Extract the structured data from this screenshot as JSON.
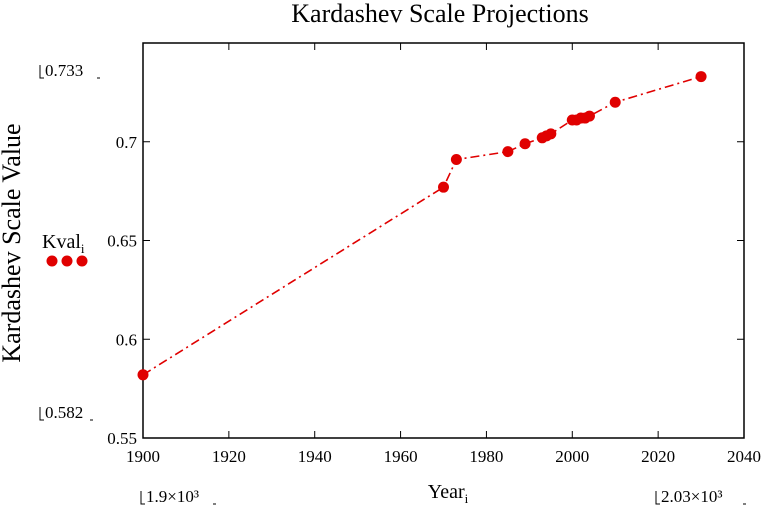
{
  "chart_data": {
    "type": "line",
    "title": "Kardashev Scale Projections",
    "xlabel": "Year",
    "xlabel_subscript": "i",
    "ylabel": "Kardashev Scale Value",
    "xlim": [
      1900,
      2040
    ],
    "ylim": [
      0.55,
      0.75
    ],
    "xticks": [
      1900,
      1920,
      1940,
      1960,
      1980,
      2000,
      2020,
      2040
    ],
    "yticks": [
      0.55,
      0.6,
      0.65,
      0.7
    ],
    "ytick_labels": [
      "0.55",
      "0.6",
      "0.65",
      "0.7"
    ],
    "grid": false,
    "series": [
      {
        "name": "Kval",
        "legend_subscript": "i",
        "color": "#e00000",
        "line_style": "dash-dot",
        "marker": "circle",
        "x": [
          1900,
          1970,
          1973,
          1985,
          1989,
          1993,
          1994,
          1995,
          2000,
          2001,
          2002,
          2003,
          2004,
          2010,
          2030
        ],
        "y": [
          0.582,
          0.677,
          0.691,
          0.695,
          0.699,
          0.702,
          0.703,
          0.704,
          0.711,
          0.711,
          0.712,
          0.712,
          0.713,
          0.72,
          0.733
        ]
      }
    ],
    "axis_limit_labels": {
      "y_max": "0.733",
      "y_min": "0.582",
      "x_min": "1.9×10³",
      "x_max": "2.03×10³"
    }
  }
}
